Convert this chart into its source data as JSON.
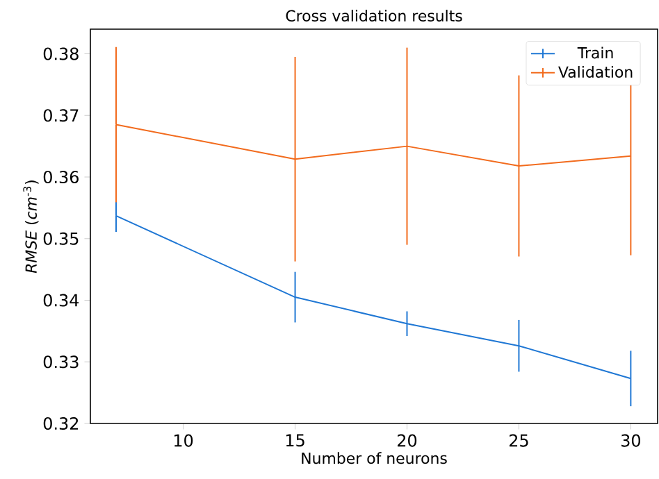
{
  "chart_data": {
    "type": "line",
    "title": "Cross validation results",
    "xlabel": "Number of neurons",
    "ylabel": "*RMSE* (*cm*$^{-3}$)",
    "x": [
      7,
      15,
      20,
      25,
      30
    ],
    "series": [
      {
        "name": "Train",
        "color": "#1f77d4",
        "values": [
          0.3537,
          0.3405,
          0.3362,
          0.3326,
          0.3273
        ],
        "errors": [
          0.0026,
          0.0041,
          0.002,
          0.0042,
          0.0045
        ]
      },
      {
        "name": "Validation",
        "color": "#f26b1d",
        "values": [
          0.3685,
          0.3629,
          0.365,
          0.3618,
          0.3634
        ],
        "errors": [
          0.0126,
          0.0166,
          0.016,
          0.0147,
          0.0161
        ]
      }
    ],
    "xlim": [
      5.85,
      31.2
    ],
    "ylim": [
      0.32,
      0.384
    ],
    "xticks": [
      10,
      15,
      20,
      25,
      30
    ],
    "yticks": [
      0.32,
      0.33,
      0.34,
      0.35,
      0.36,
      0.37,
      0.38
    ],
    "legend": "top right",
    "marker": "none",
    "line_style": "solid"
  }
}
